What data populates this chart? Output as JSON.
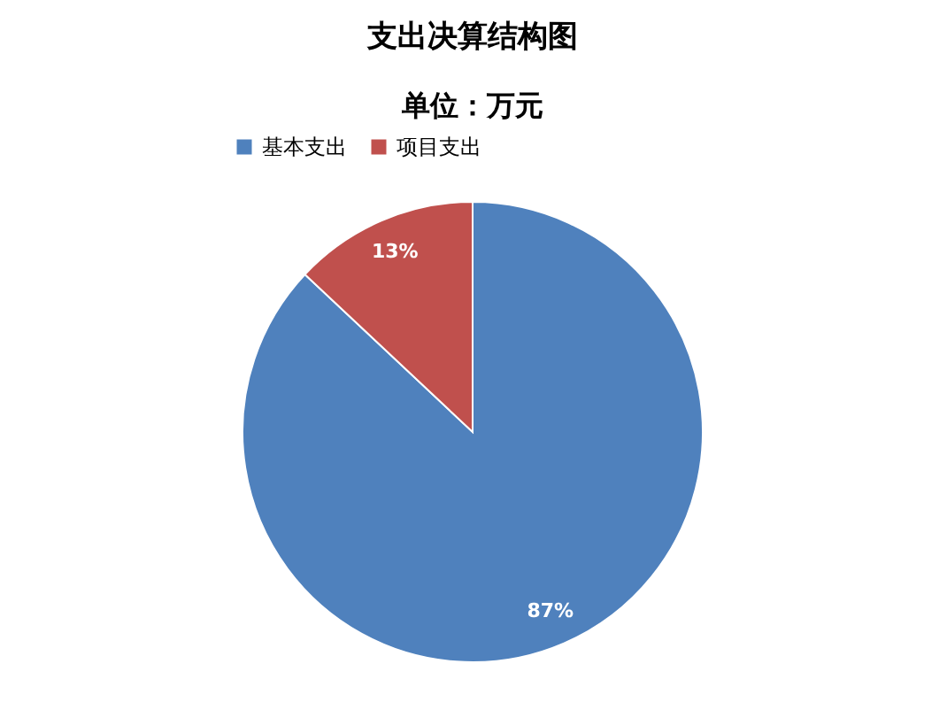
{
  "chart_data": {
    "type": "pie",
    "title": "支出决算结构图",
    "subtitle": "单位：万元",
    "categories": [
      "基本支出",
      "项目支出"
    ],
    "values": [
      87,
      13
    ],
    "colors": [
      "#4f81bd",
      "#c0504d"
    ],
    "value_labels": [
      "87%",
      "13%"
    ],
    "legend": "top"
  }
}
